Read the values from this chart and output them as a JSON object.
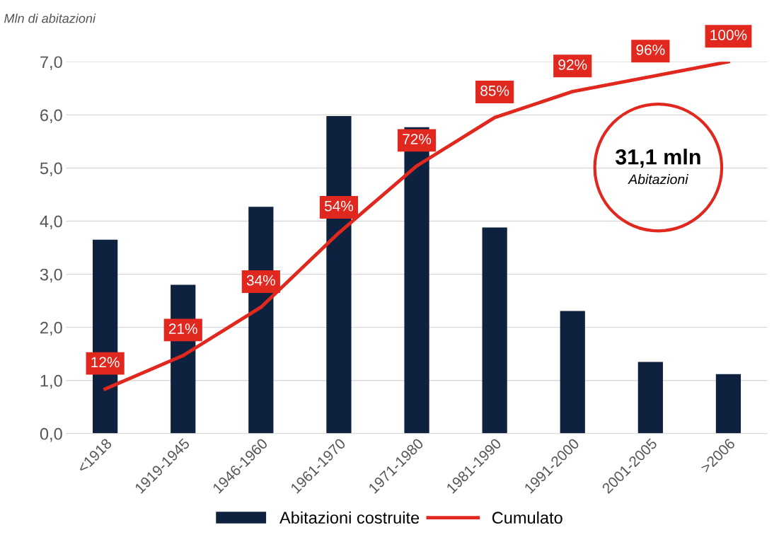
{
  "chart_data": {
    "type": "bar",
    "ylabel": "Mln di abitazioni",
    "categories": [
      "<1918",
      "1919-1945",
      "1946-1960",
      "1961-1970",
      "1971-1980",
      "1981-1990",
      "1991-2000",
      "2001-2005",
      ">2006"
    ],
    "series": [
      {
        "name": "Abitazioni costruite",
        "color": "#0e2240",
        "values": [
          3.65,
          2.8,
          4.27,
          5.98,
          5.77,
          3.88,
          2.31,
          1.35,
          1.12
        ]
      },
      {
        "name": "Cumulato",
        "type": "line",
        "axis": "y2",
        "color": "#e0281e",
        "values": [
          12,
          21,
          34,
          54,
          72,
          85,
          92,
          96,
          100
        ],
        "value_labels": [
          "12%",
          "21%",
          "34%",
          "54%",
          "72%",
          "85%",
          "92%",
          "96%",
          "100%"
        ]
      }
    ],
    "ylim": [
      0,
      7
    ],
    "yticks": [
      {
        "value": 0,
        "label": "0,0"
      },
      {
        "value": 1,
        "label": "1,0"
      },
      {
        "value": 2,
        "label": "2,0"
      },
      {
        "value": 3,
        "label": "3,0"
      },
      {
        "value": 4,
        "label": "4,0"
      },
      {
        "value": 5,
        "label": "5,0"
      },
      {
        "value": 6,
        "label": "6,0"
      },
      {
        "value": 7,
        "label": "7,0"
      }
    ],
    "y2lim": [
      0,
      100
    ],
    "grid": "y",
    "legend": "bottom",
    "marker": "none",
    "line_style": "solid",
    "annotations": [
      "31,1 mln",
      "Abitazioni"
    ]
  }
}
